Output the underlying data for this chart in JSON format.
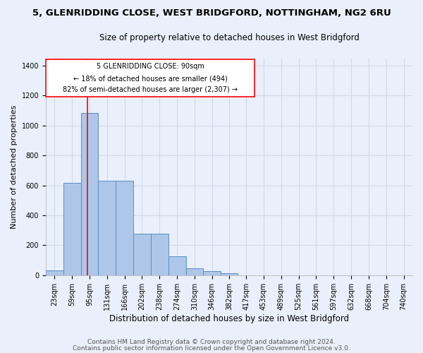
{
  "title": "5, GLENRIDDING CLOSE, WEST BRIDGFORD, NOTTINGHAM, NG2 6RU",
  "subtitle": "Size of property relative to detached houses in West Bridgford",
  "xlabel": "Distribution of detached houses by size in West Bridgford",
  "ylabel": "Number of detached properties",
  "footer_line1": "Contains HM Land Registry data © Crown copyright and database right 2024.",
  "footer_line2": "Contains public sector information licensed under the Open Government Licence v3.0.",
  "annotation_title": "5 GLENRIDDING CLOSE: 90sqm",
  "annotation_line2": "← 18% of detached houses are smaller (494)",
  "annotation_line3": "82% of semi-detached houses are larger (2,307) →",
  "bar_color": "#aec6e8",
  "bar_edge_color": "#5a8fc2",
  "vline_color": "red",
  "vline_x": 90,
  "categories": [
    "23sqm",
    "59sqm",
    "95sqm",
    "131sqm",
    "166sqm",
    "202sqm",
    "238sqm",
    "274sqm",
    "310sqm",
    "346sqm",
    "382sqm",
    "417sqm",
    "453sqm",
    "489sqm",
    "525sqm",
    "561sqm",
    "597sqm",
    "632sqm",
    "668sqm",
    "704sqm",
    "740sqm"
  ],
  "bin_edges": [
    5,
    41,
    77,
    113,
    149,
    185,
    221,
    257,
    293,
    329,
    365,
    399,
    435,
    471,
    507,
    543,
    579,
    615,
    651,
    687,
    723,
    759
  ],
  "values": [
    30,
    615,
    1085,
    630,
    630,
    275,
    275,
    125,
    45,
    25,
    15,
    0,
    0,
    0,
    0,
    0,
    0,
    0,
    0,
    0,
    0
  ],
  "ylim": [
    0,
    1450
  ],
  "yticks": [
    0,
    200,
    400,
    600,
    800,
    1000,
    1200,
    1400
  ],
  "background_color": "#eaf0fb",
  "grid_color": "#d0d8e8",
  "title_fontsize": 9.5,
  "subtitle_fontsize": 8.5,
  "axis_label_fontsize": 8,
  "tick_fontsize": 7,
  "footer_fontsize": 6.5
}
